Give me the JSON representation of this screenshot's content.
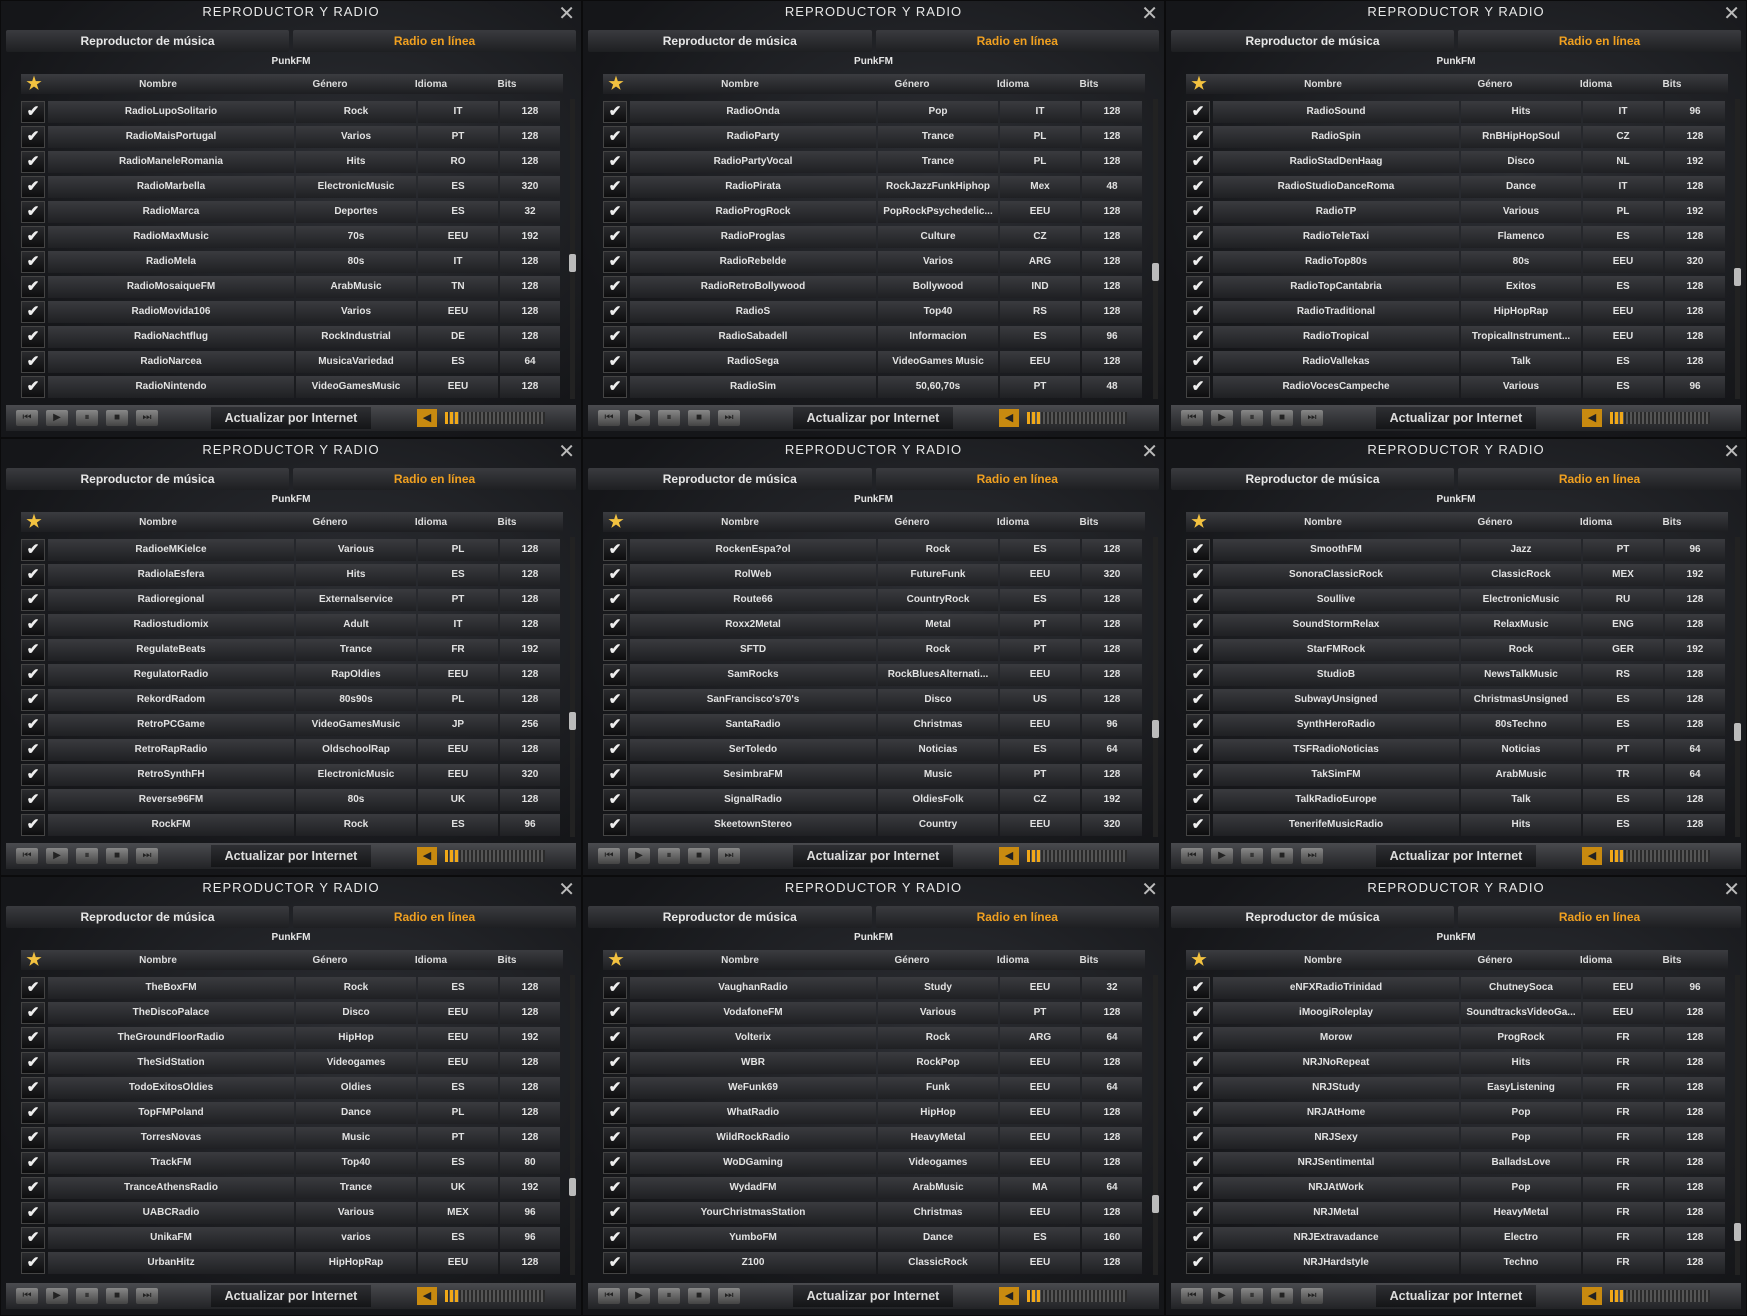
{
  "window": {
    "title": "REPRODUCTOR Y RADIO",
    "close_icon": "close-icon"
  },
  "tabs": {
    "music_player": "Reproductor de música",
    "online_radio": "Radio en línea",
    "active": "online_radio"
  },
  "now_playing": "PunkFM",
  "columns": {
    "favorite_icon": "star-icon",
    "name": "Nombre",
    "genre": "Género",
    "language": "Idioma",
    "bits": "Bits"
  },
  "footer": {
    "update_button": "Actualizar por Internet",
    "controls": [
      "previous-icon",
      "play-icon",
      "pause-icon",
      "stop-icon",
      "next-icon"
    ],
    "volume_icon": "speaker-icon",
    "volume_level_percent": 15
  },
  "colors": {
    "accent": "#f0a020",
    "background": "#1a1b1e"
  },
  "panels": [
    {
      "scroll_percent": 55,
      "rows": [
        [
          "RadioLupoSolitario",
          "Rock",
          "IT",
          "128"
        ],
        [
          "RadioMaisPortugal",
          "Varios",
          "PT",
          "128"
        ],
        [
          "RadioManeleRomania",
          "Hits",
          "RO",
          "128"
        ],
        [
          "RadioMarbella",
          "ElectronicMusic",
          "ES",
          "320"
        ],
        [
          "RadioMarca",
          "Deportes",
          "ES",
          "32"
        ],
        [
          "RadioMaxMusic",
          "70s",
          "EEU",
          "192"
        ],
        [
          "RadioMela",
          "80s",
          "IT",
          "128"
        ],
        [
          "RadioMosaiqueFM",
          "ArabMusic",
          "TN",
          "128"
        ],
        [
          "RadioMovida106",
          "Varios",
          "EEU",
          "128"
        ],
        [
          "RadioNachtflug",
          "RockIndustrial",
          "DE",
          "128"
        ],
        [
          "RadioNarcea",
          "MusicaVariedad",
          "ES",
          "64"
        ],
        [
          "RadioNintendo",
          "VideoGamesMusic",
          "EEU",
          "128"
        ]
      ]
    },
    {
      "scroll_percent": 58,
      "rows": [
        [
          "RadioOnda",
          "Pop",
          "IT",
          "128"
        ],
        [
          "RadioParty",
          "Trance",
          "PL",
          "128"
        ],
        [
          "RadioPartyVocal",
          "Trance",
          "PL",
          "128"
        ],
        [
          "RadioPirata",
          "RockJazzFunkHiphop",
          "Mex",
          "48"
        ],
        [
          "RadioProgRock",
          "PopRockPsychedelic...",
          "EEU",
          "128"
        ],
        [
          "RadioProglas",
          "Culture",
          "CZ",
          "128"
        ],
        [
          "RadioRebelde",
          "Varios",
          "ARG",
          "128"
        ],
        [
          "RadioRetroBollywood",
          "Bollywood",
          "IND",
          "128"
        ],
        [
          "RadioS",
          "Top40",
          "RS",
          "128"
        ],
        [
          "RadioSabadell",
          "Informacion",
          "ES",
          "96"
        ],
        [
          "RadioSega",
          "VideoGames Music",
          "EEU",
          "128"
        ],
        [
          "RadioSim",
          "50,60,70s",
          "PT",
          "48"
        ]
      ]
    },
    {
      "scroll_percent": 60,
      "rows": [
        [
          "RadioSound",
          "Hits",
          "IT",
          "96"
        ],
        [
          "RadioSpin",
          "RnBHipHopSoul",
          "CZ",
          "128"
        ],
        [
          "RadioStadDenHaag",
          "Disco",
          "NL",
          "192"
        ],
        [
          "RadioStudioDanceRoma",
          "Dance",
          "IT",
          "128"
        ],
        [
          "RadioTP",
          "Various",
          "PL",
          "192"
        ],
        [
          "RadioTeleTaxi",
          "Flamenco",
          "ES",
          "128"
        ],
        [
          "RadioTop80s",
          "80s",
          "EEU",
          "320"
        ],
        [
          "RadioTopCantabria",
          "Exitos",
          "ES",
          "128"
        ],
        [
          "RadioTraditional",
          "HipHopRap",
          "EEU",
          "128"
        ],
        [
          "RadioTropical",
          "TropicalInstrument...",
          "EEU",
          "128"
        ],
        [
          "RadioVallekas",
          "Talk",
          "ES",
          "128"
        ],
        [
          "RadioVocesCampeche",
          "Various",
          "ES",
          "96"
        ]
      ]
    },
    {
      "scroll_percent": 62,
      "rows": [
        [
          "RadioeMKielce",
          "Various",
          "PL",
          "128"
        ],
        [
          "RadiolaEsfera",
          "Hits",
          "ES",
          "128"
        ],
        [
          "Radioregional",
          "Externalservice",
          "PT",
          "128"
        ],
        [
          "Radiostudiomix",
          "Adult",
          "IT",
          "128"
        ],
        [
          "RegulateBeats",
          "Trance",
          "FR",
          "192"
        ],
        [
          "RegulatorRadio",
          "RapOldies",
          "EEU",
          "128"
        ],
        [
          "RekordRadom",
          "80s90s",
          "PL",
          "128"
        ],
        [
          "RetroPCGame",
          "VideoGamesMusic",
          "JP",
          "256"
        ],
        [
          "RetroRapRadio",
          "OldschoolRap",
          "EEU",
          "128"
        ],
        [
          "RetroSynthFH",
          "ElectronicMusic",
          "EEU",
          "320"
        ],
        [
          "Reverse96FM",
          "80s",
          "UK",
          "128"
        ],
        [
          "RockFM",
          "Rock",
          "ES",
          "96"
        ]
      ]
    },
    {
      "scroll_percent": 65,
      "rows": [
        [
          "RockenEspa?ol",
          "Rock",
          "ES",
          "128"
        ],
        [
          "RolWeb",
          "FutureFunk",
          "EEU",
          "320"
        ],
        [
          "Route66",
          "CountryRock",
          "ES",
          "128"
        ],
        [
          "Roxx2Metal",
          "Metal",
          "PT",
          "128"
        ],
        [
          "SFTD",
          "Rock",
          "PT",
          "128"
        ],
        [
          "SamRocks",
          "RockBluesAlternati...",
          "EEU",
          "128"
        ],
        [
          "SanFrancisco's70's",
          "Disco",
          "US",
          "128"
        ],
        [
          "SantaRadio",
          "Christmas",
          "EEU",
          "96"
        ],
        [
          "SerToledo",
          "Noticias",
          "ES",
          "64"
        ],
        [
          "SesimbraFM",
          "Music",
          "PT",
          "128"
        ],
        [
          "SignalRadio",
          "OldiesFolk",
          "CZ",
          "192"
        ],
        [
          "SkeetownStereo",
          "Country",
          "EEU",
          "320"
        ]
      ]
    },
    {
      "scroll_percent": 66,
      "rows": [
        [
          "SmoothFM",
          "Jazz",
          "PT",
          "96"
        ],
        [
          "SonoraClassicRock",
          "ClassicRock",
          "MEX",
          "192"
        ],
        [
          "Soullive",
          "ElectronicMusic",
          "RU",
          "128"
        ],
        [
          "SoundStormRelax",
          "RelaxMusic",
          "ENG",
          "128"
        ],
        [
          "StarFMRock",
          "Rock",
          "GER",
          "192"
        ],
        [
          "StudioB",
          "NewsTalkMusic",
          "RS",
          "128"
        ],
        [
          "SubwayUnsigned",
          "ChristmasUnsigned",
          "ES",
          "128"
        ],
        [
          "SynthHeroRadio",
          "80sTechno",
          "ES",
          "128"
        ],
        [
          "TSFRadioNoticias",
          "Noticias",
          "PT",
          "64"
        ],
        [
          "TakSimFM",
          "ArabMusic",
          "TR",
          "64"
        ],
        [
          "TalkRadioEurope",
          "Talk",
          "ES",
          "128"
        ],
        [
          "TenerifeMusicRadio",
          "Hits",
          "ES",
          "128"
        ]
      ]
    },
    {
      "scroll_percent": 72,
      "rows": [
        [
          "TheBoxFM",
          "Rock",
          "ES",
          "128"
        ],
        [
          "TheDiscoPalace",
          "Disco",
          "EEU",
          "128"
        ],
        [
          "TheGroundFloorRadio",
          "HipHop",
          "EEU",
          "192"
        ],
        [
          "TheSidStation",
          "Videogames",
          "EEU",
          "128"
        ],
        [
          "TodoExitosOldies",
          "Oldies",
          "ES",
          "128"
        ],
        [
          "TopFMPoland",
          "Dance",
          "PL",
          "128"
        ],
        [
          "TorresNovas",
          "Music",
          "PT",
          "128"
        ],
        [
          "TrackFM",
          "Top40",
          "ES",
          "80"
        ],
        [
          "TranceAthensRadio",
          "Trance",
          "UK",
          "192"
        ],
        [
          "UABCRadio",
          "Various",
          "MEX",
          "96"
        ],
        [
          "UnikaFM",
          "varios",
          "ES",
          "96"
        ],
        [
          "UrbanHitz",
          "HipHopRap",
          "EEU",
          "128"
        ]
      ]
    },
    {
      "scroll_percent": 78,
      "rows": [
        [
          "VaughanRadio",
          "Study",
          "EEU",
          "32"
        ],
        [
          "VodafoneFM",
          "Various",
          "PT",
          "128"
        ],
        [
          "Volterix",
          "Rock",
          "ARG",
          "64"
        ],
        [
          "WBR",
          "RockPop",
          "EEU",
          "128"
        ],
        [
          "WeFunk69",
          "Funk",
          "EEU",
          "64"
        ],
        [
          "WhatRadio",
          "HipHop",
          "EEU",
          "128"
        ],
        [
          "WildRockRadio",
          "HeavyMetal",
          "EEU",
          "128"
        ],
        [
          "WoDGaming",
          "Videogames",
          "EEU",
          "128"
        ],
        [
          "WydadFM",
          "ArabMusic",
          "MA",
          "64"
        ],
        [
          "YourChristmasStation",
          "Christmas",
          "EEU",
          "128"
        ],
        [
          "YumboFM",
          "Dance",
          "ES",
          "160"
        ],
        [
          "Z100",
          "ClassicRock",
          "EEU",
          "128"
        ]
      ]
    },
    {
      "scroll_percent": 88,
      "rows": [
        [
          "eNFXRadioTrinidad",
          "ChutneySoca",
          "EEU",
          "96"
        ],
        [
          "iMoogiRoleplay",
          "SoundtracksVideoGa...",
          "EEU",
          "128"
        ],
        [
          "Morow",
          "ProgRock",
          "FR",
          "128"
        ],
        [
          "NRJNoRepeat",
          "Hits",
          "FR",
          "128"
        ],
        [
          "NRJStudy",
          "EasyListening",
          "FR",
          "128"
        ],
        [
          "NRJAtHome",
          "Pop",
          "FR",
          "128"
        ],
        [
          "NRJSexy",
          "Pop",
          "FR",
          "128"
        ],
        [
          "NRJSentimental",
          "BalladsLove",
          "FR",
          "128"
        ],
        [
          "NRJAtWork",
          "Pop",
          "FR",
          "128"
        ],
        [
          "NRJMetal",
          "HeavyMetal",
          "FR",
          "128"
        ],
        [
          "NRJExtravadance",
          "Electro",
          "FR",
          "128"
        ],
        [
          "NRJHardstyle",
          "Techno",
          "FR",
          "128"
        ]
      ]
    }
  ]
}
